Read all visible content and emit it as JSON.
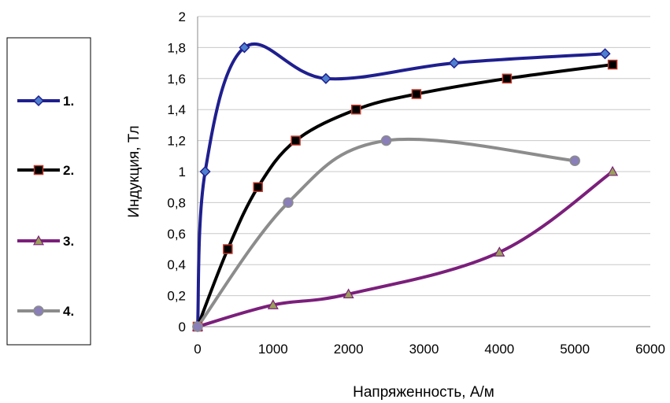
{
  "chart_data": {
    "type": "line",
    "title": "",
    "xlabel": "Напряженность, А/м",
    "ylabel": "Индукция, Тл",
    "xlim": [
      0,
      6000
    ],
    "ylim": [
      0,
      2
    ],
    "x_ticks": [
      0,
      1000,
      2000,
      3000,
      4000,
      5000,
      6000
    ],
    "x_tick_labels": [
      "0",
      "1000",
      "2000",
      "3000",
      "4000",
      "5000",
      "6000"
    ],
    "y_ticks": [
      0,
      0.2,
      0.4,
      0.6,
      0.8,
      1,
      1.2,
      1.4,
      1.6,
      1.8,
      2
    ],
    "y_tick_labels": [
      "0",
      "0,2",
      "0,4",
      "0,6",
      "0,8",
      "1",
      "1,2",
      "1,4",
      "1,6",
      "1,8",
      "2"
    ],
    "grid": "horizontal",
    "legend": "left",
    "series": [
      {
        "name": "1.",
        "color": "#1f1f8f",
        "marker": "diamond",
        "marker_fill": "#4f7fcf",
        "points": [
          [
            0,
            0
          ],
          [
            100,
            1.0
          ],
          [
            620,
            1.8
          ],
          [
            1700,
            1.6
          ],
          [
            3400,
            1.7
          ],
          [
            5400,
            1.76
          ]
        ]
      },
      {
        "name": "2.",
        "color": "#000000",
        "marker": "square",
        "marker_fill": "#000000",
        "marker_stroke": "#c0392b",
        "points": [
          [
            0,
            0
          ],
          [
            400,
            0.5
          ],
          [
            800,
            0.9
          ],
          [
            1300,
            1.2
          ],
          [
            2100,
            1.4
          ],
          [
            2900,
            1.5
          ],
          [
            4100,
            1.6
          ],
          [
            5500,
            1.69
          ]
        ]
      },
      {
        "name": "3.",
        "color": "#7b1f7b",
        "marker": "triangle",
        "marker_fill": "#9aa05a",
        "points": [
          [
            0,
            0
          ],
          [
            1000,
            0.14
          ],
          [
            2000,
            0.21
          ],
          [
            4000,
            0.48
          ],
          [
            5500,
            1.0
          ]
        ]
      },
      {
        "name": "4.",
        "color": "#8c8c8c",
        "marker": "circle",
        "marker_fill": "#8a7fb8",
        "points": [
          [
            0,
            0
          ],
          [
            1200,
            0.8
          ],
          [
            2500,
            1.2
          ],
          [
            5000,
            1.07
          ]
        ]
      }
    ]
  }
}
